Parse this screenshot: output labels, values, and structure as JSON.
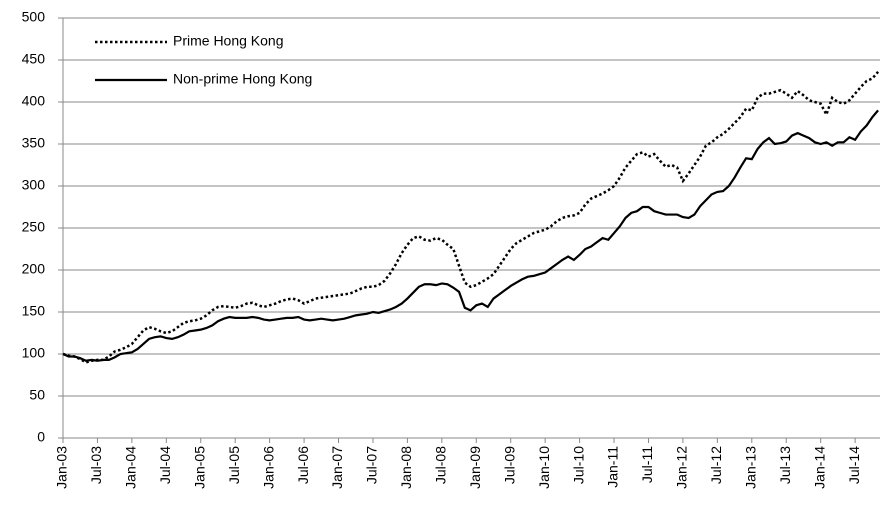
{
  "chart_data": {
    "type": "line",
    "categories": [
      "Jan-03",
      null,
      null,
      null,
      null,
      null,
      "Jul-03",
      null,
      null,
      null,
      null,
      null,
      "Jan-04",
      null,
      null,
      null,
      null,
      null,
      "Jul-04",
      null,
      null,
      null,
      null,
      null,
      "Jan-05",
      null,
      null,
      null,
      null,
      null,
      "Jul-05",
      null,
      null,
      null,
      null,
      null,
      "Jan-06",
      null,
      null,
      null,
      null,
      null,
      "Jul-06",
      null,
      null,
      null,
      null,
      null,
      "Jan-07",
      null,
      null,
      null,
      null,
      null,
      "Jul-07",
      null,
      null,
      null,
      null,
      null,
      "Jan-08",
      null,
      null,
      null,
      null,
      null,
      "Jul-08",
      null,
      null,
      null,
      null,
      null,
      "Jan-09",
      null,
      null,
      null,
      null,
      null,
      "Jul-09",
      null,
      null,
      null,
      null,
      null,
      "Jan-10",
      null,
      null,
      null,
      null,
      null,
      "Jul-10",
      null,
      null,
      null,
      null,
      null,
      "Jan-11",
      null,
      null,
      null,
      null,
      null,
      "Jul-11",
      null,
      null,
      null,
      null,
      null,
      "Jan-12",
      null,
      null,
      null,
      null,
      null,
      "Jul-12",
      null,
      null,
      null,
      null,
      null,
      "Jan-13",
      null,
      null,
      null,
      null,
      null,
      "Jul-13",
      null,
      null,
      null,
      null,
      null,
      "Jan-14",
      null,
      null,
      null,
      null,
      null,
      "Jul-14",
      null,
      null,
      null,
      null
    ],
    "series": [
      {
        "name": "Prime Hong Kong",
        "color": "#000000",
        "style": "dotted",
        "values": [
          100,
          98,
          97,
          94,
          90,
          92,
          93,
          93,
          97,
          103,
          105,
          108,
          112,
          120,
          128,
          132,
          130,
          127,
          125,
          127,
          132,
          137,
          139,
          140,
          142,
          146,
          152,
          156,
          157,
          156,
          155,
          157,
          160,
          161,
          158,
          156,
          158,
          160,
          163,
          165,
          166,
          164,
          160,
          163,
          166,
          167,
          168,
          169,
          170,
          171,
          172,
          175,
          178,
          180,
          180,
          182,
          187,
          196,
          207,
          220,
          230,
          238,
          240,
          236,
          235,
          238,
          236,
          230,
          225,
          205,
          185,
          180,
          182,
          186,
          190,
          195,
          205,
          215,
          225,
          232,
          236,
          240,
          244,
          246,
          248,
          252,
          258,
          262,
          264,
          265,
          268,
          278,
          285,
          288,
          291,
          295,
          300,
          310,
          322,
          330,
          338,
          340,
          335,
          338,
          330,
          323,
          325,
          322,
          306,
          315,
          325,
          335,
          348,
          352,
          358,
          362,
          368,
          375,
          382,
          392,
          390,
          405,
          410,
          410,
          412,
          414,
          410,
          405,
          413,
          408,
          402,
          400,
          398,
          385,
          405,
          400,
          398,
          402,
          410,
          418,
          425,
          428,
          436
        ]
      },
      {
        "name": "Non-prime Hong Kong",
        "color": "#000000",
        "style": "solid",
        "values": [
          100,
          97,
          97,
          95,
          92,
          93,
          92,
          93,
          93,
          96,
          100,
          101,
          102,
          106,
          112,
          118,
          120,
          121,
          119,
          118,
          120,
          123,
          127,
          128,
          129,
          131,
          134,
          139,
          142,
          144,
          143,
          143,
          143,
          144,
          143,
          141,
          140,
          141,
          142,
          143,
          143,
          144,
          141,
          140,
          141,
          142,
          141,
          140,
          141,
          142,
          144,
          146,
          147,
          148,
          150,
          149,
          151,
          153,
          156,
          160,
          166,
          173,
          180,
          183,
          183,
          182,
          184,
          183,
          179,
          174,
          155,
          152,
          158,
          160,
          156,
          166,
          171,
          176,
          181,
          185,
          189,
          192,
          193,
          195,
          197,
          202,
          207,
          212,
          216,
          212,
          218,
          225,
          228,
          233,
          238,
          236,
          244,
          252,
          262,
          268,
          270,
          275,
          275,
          270,
          268,
          266,
          266,
          266,
          263,
          262,
          266,
          276,
          283,
          290,
          293,
          294,
          300,
          310,
          322,
          333,
          332,
          344,
          352,
          357,
          350,
          351,
          353,
          360,
          363,
          360,
          357,
          352,
          350,
          352,
          348,
          352,
          352,
          358,
          355,
          365,
          372,
          382,
          390
        ]
      }
    ],
    "ylim": [
      0,
      500
    ],
    "yticks": [
      0,
      50,
      100,
      150,
      200,
      250,
      300,
      350,
      400,
      450,
      500
    ],
    "grid": true,
    "legend": "top-left"
  }
}
